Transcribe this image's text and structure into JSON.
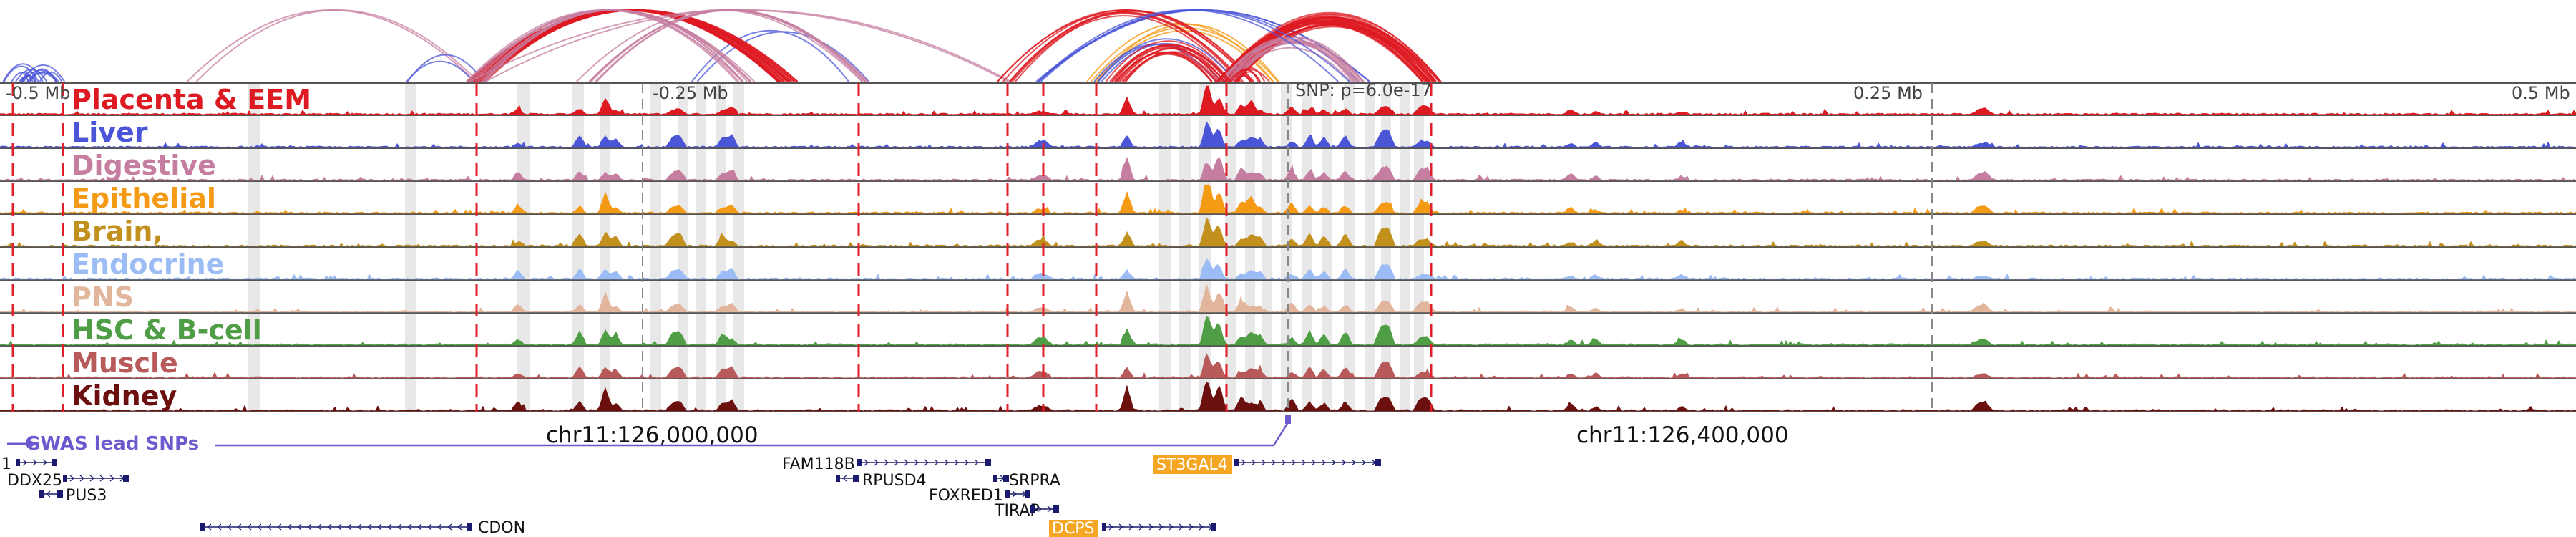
{
  "scale": {
    "left_tick": "-0.5 Mb",
    "neg_quarter_tick": "-0.25 Mb",
    "snp_label": "SNP: p=6.0e-17",
    "pos_quarter_tick": "0.25 Mb",
    "right_tick": "0.5 Mb"
  },
  "tracks": [
    {
      "label": "Placenta & EEM",
      "color": "#dd1a22"
    },
    {
      "label": "Liver",
      "color": "#4b55d8"
    },
    {
      "label": "Digestive",
      "color": "#c57ea0"
    },
    {
      "label": "Epithelial",
      "color": "#f59a14"
    },
    {
      "label": "Brain,",
      "color": "#c1901d"
    },
    {
      "label": "Endocrine",
      "color": "#9bbcf5"
    },
    {
      "label": "PNS",
      "color": "#e2b69d"
    },
    {
      "label": "HSC & B-cell",
      "color": "#4f9e45"
    },
    {
      "label": "Muscle",
      "color": "#b85a5a"
    },
    {
      "label": "Kidney",
      "color": "#6b0f0f"
    }
  ],
  "coordinates": {
    "left": "chr11:126,000,000",
    "right": "chr11:126,400,000"
  },
  "gwas_label": "GWAS lead SNPs",
  "genes": {
    "one": "1",
    "ddx25": "DDX25",
    "pus3": "PUS3",
    "cdon": "CDON",
    "fam118b": "FAM118B",
    "rpusd4": "RPUSD4",
    "srpra": "SRPRA",
    "foxred1": "FOXRED1",
    "tirap": "TIRAP",
    "st3gal4": "ST3GAL4",
    "dcps": "DCPS"
  },
  "colors": {
    "highlight_gene": "#f5a623",
    "gwas": "#6a5acd",
    "gene_body": "#1a1a6e"
  }
}
